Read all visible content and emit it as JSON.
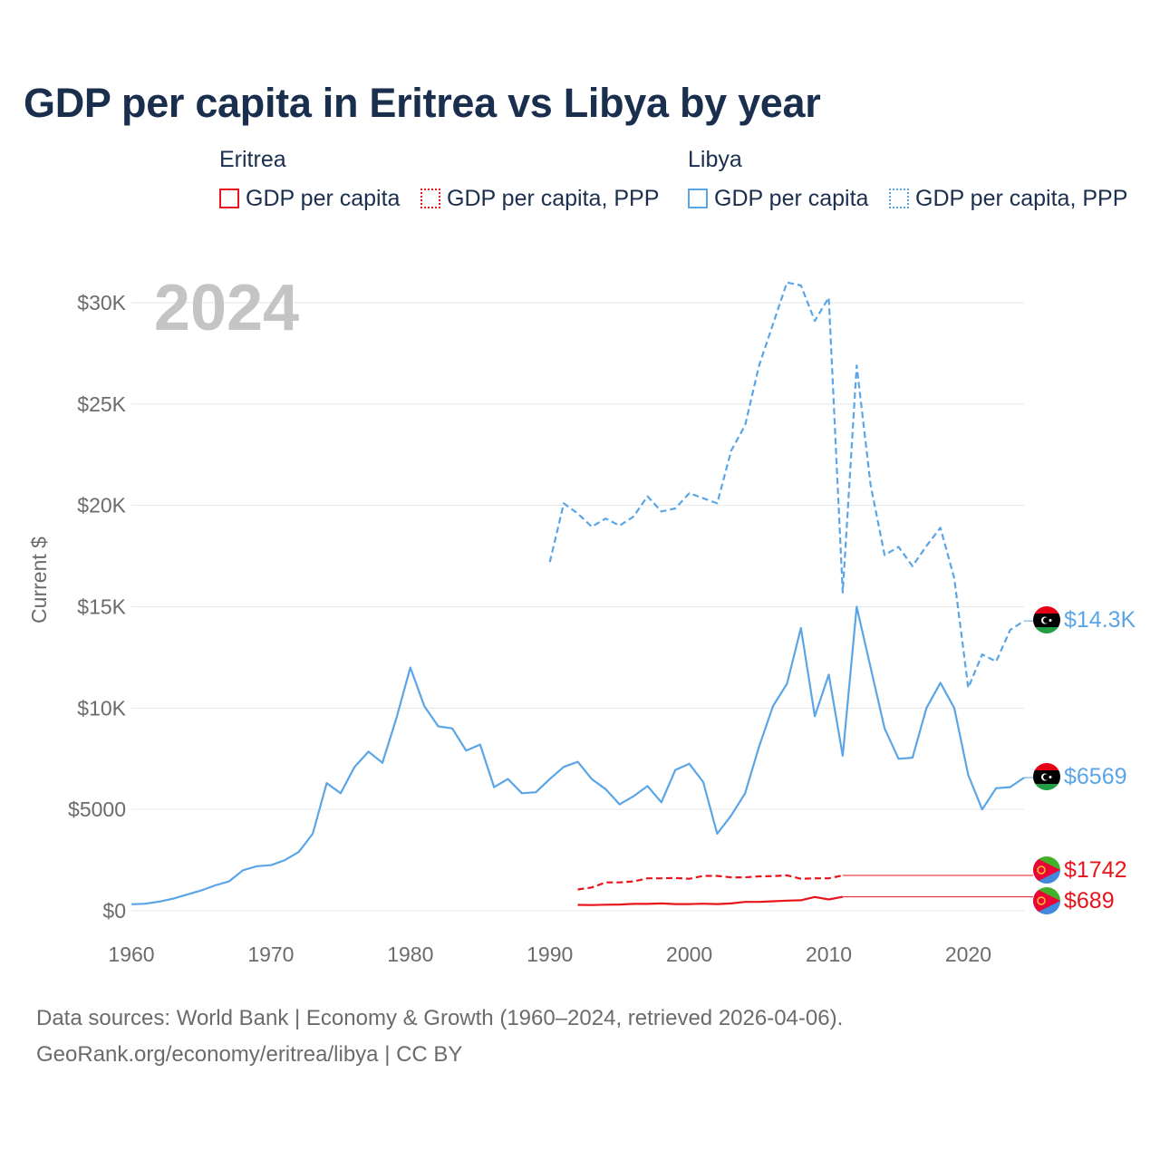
{
  "chart_data": {
    "type": "line",
    "title": "GDP per capita in Eritrea vs Libya by year",
    "year_badge": "2024",
    "ylabel": "Current $",
    "xlabel": "",
    "xlim": [
      1960,
      2024
    ],
    "ylim": [
      0,
      32000
    ],
    "x_ticks": [
      1960,
      1970,
      1980,
      1990,
      2000,
      2010,
      2020
    ],
    "x_tick_labels": [
      "1960",
      "1970",
      "1980",
      "1990",
      "2000",
      "2010",
      "2020"
    ],
    "y_ticks": [
      0,
      5000,
      10000,
      15000,
      20000,
      25000,
      30000
    ],
    "y_tick_labels": [
      "$0",
      "$5000",
      "$10K",
      "$15K",
      "$20K",
      "$25K",
      "$30K"
    ],
    "legend_groups": [
      {
        "country": "Eritrea",
        "color": "#e8141c",
        "items": [
          {
            "label": "GDP per capita",
            "style": "solid"
          },
          {
            "label": "GDP per capita, PPP",
            "style": "dotted"
          }
        ]
      },
      {
        "country": "Libya",
        "color": "#5aa5e6",
        "items": [
          {
            "label": "GDP per capita",
            "style": "solid"
          },
          {
            "label": "GDP per capita, PPP",
            "style": "dotted"
          }
        ]
      }
    ],
    "series": [
      {
        "name": "Libya GDP per capita",
        "country": "Libya",
        "color": "#5aa5e6",
        "dash": "solid",
        "end_label": "$6569",
        "flag": "libya",
        "x": [
          1960,
          1961,
          1962,
          1963,
          1964,
          1965,
          1966,
          1967,
          1968,
          1969,
          1970,
          1971,
          1972,
          1973,
          1974,
          1975,
          1976,
          1977,
          1978,
          1979,
          1980,
          1981,
          1982,
          1983,
          1984,
          1985,
          1986,
          1987,
          1988,
          1989,
          1990,
          1991,
          1992,
          1993,
          1994,
          1995,
          1996,
          1997,
          1998,
          1999,
          2000,
          2001,
          2002,
          2003,
          2004,
          2005,
          2006,
          2007,
          2008,
          2009,
          2010,
          2011,
          2012,
          2013,
          2014,
          2015,
          2016,
          2017,
          2018,
          2019,
          2020,
          2021,
          2022,
          2023,
          2024
        ],
        "values": [
          320,
          350,
          450,
          600,
          800,
          1000,
          1250,
          1450,
          2000,
          2200,
          2250,
          2500,
          2900,
          3800,
          6300,
          5800,
          7100,
          7850,
          7300,
          9500,
          12000,
          10100,
          9100,
          9000,
          7900,
          8200,
          6100,
          6500,
          5800,
          5850,
          6500,
          7100,
          7350,
          6500,
          6000,
          5250,
          5650,
          6150,
          5350,
          6950,
          7250,
          6350,
          3800,
          4700,
          5800,
          8100,
          10100,
          11200,
          13950,
          9600,
          11650,
          7650,
          15000,
          12000,
          9000,
          7500,
          7550,
          10000,
          11250,
          10000,
          6700,
          5000,
          6050,
          6100,
          6569
        ]
      },
      {
        "name": "Libya GDP per capita, PPP",
        "country": "Libya",
        "color": "#5aa5e6",
        "dash": "dashed",
        "end_label": "$14.3K",
        "flag": "libya",
        "x": [
          1990,
          1991,
          1992,
          1993,
          1994,
          1995,
          1996,
          1997,
          1998,
          1999,
          2000,
          2001,
          2002,
          2003,
          2004,
          2005,
          2006,
          2007,
          2008,
          2009,
          2010,
          2011,
          2012,
          2013,
          2014,
          2015,
          2016,
          2017,
          2018,
          2019,
          2020,
          2021,
          2022,
          2023,
          2024
        ],
        "values": [
          17200,
          20100,
          19600,
          18950,
          19350,
          19000,
          19450,
          20450,
          19700,
          19850,
          20600,
          20350,
          20100,
          22700,
          23950,
          26900,
          28950,
          31000,
          30850,
          29100,
          30250,
          15700,
          26900,
          21000,
          17550,
          17950,
          17000,
          18000,
          18900,
          16400,
          11000,
          12650,
          12300,
          13850,
          14300
        ]
      },
      {
        "name": "Eritrea GDP per capita, PPP",
        "country": "Eritrea",
        "color": "#e8141c",
        "dash": "dashed",
        "end_label": "$1742",
        "flag": "eritrea",
        "x": [
          1992,
          1993,
          1994,
          1995,
          1996,
          1997,
          1998,
          1999,
          2000,
          2001,
          2002,
          2003,
          2004,
          2005,
          2006,
          2007,
          2008,
          2009,
          2010,
          2011
        ],
        "values": [
          1050,
          1150,
          1400,
          1400,
          1450,
          1600,
          1600,
          1620,
          1580,
          1720,
          1720,
          1650,
          1650,
          1700,
          1710,
          1750,
          1580,
          1600,
          1600,
          1742
        ]
      },
      {
        "name": "Eritrea GDP per capita",
        "country": "Eritrea",
        "color": "#e8141c",
        "dash": "solid",
        "end_label": "$689",
        "flag": "eritrea",
        "x": [
          1992,
          1993,
          1994,
          1995,
          1996,
          1997,
          1998,
          1999,
          2000,
          2001,
          2002,
          2003,
          2004,
          2005,
          2006,
          2007,
          2008,
          2009,
          2010,
          2011
        ],
        "values": [
          290,
          280,
          300,
          310,
          340,
          340,
          360,
          330,
          330,
          350,
          330,
          360,
          440,
          440,
          470,
          500,
          520,
          680,
          560,
          689
        ]
      }
    ]
  },
  "footer": {
    "line1": "Data sources: World Bank | Economy & Growth (1960–2024, retrieved 2026-04-06).",
    "line2": "GeoRank.org/economy/eritrea/libya | CC BY"
  }
}
